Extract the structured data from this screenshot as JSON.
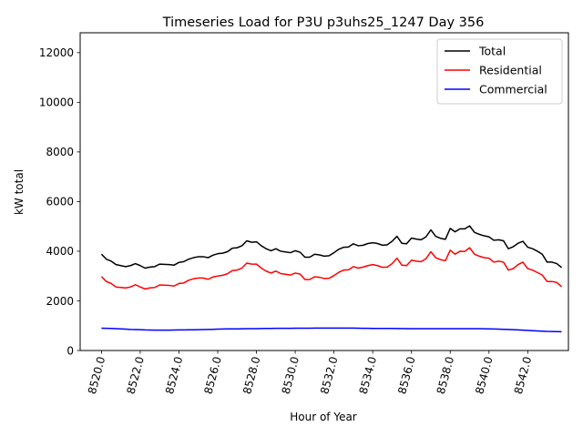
{
  "chart_data": {
    "type": "line",
    "title": "Timeseries Load for P3U p3uhs25_1247  Day 356",
    "xlabel": "Hour of Year",
    "ylabel": "kW total",
    "xlim": [
      8518.9,
      8544.1
    ],
    "ylim": [
      0,
      12800
    ],
    "xticks": [
      8520,
      8522,
      8524,
      8526,
      8528,
      8530,
      8532,
      8534,
      8536,
      8538,
      8540,
      8542
    ],
    "xtick_labels": [
      "8520.0",
      "8522.0",
      "8524.0",
      "8526.0",
      "8528.0",
      "8530.0",
      "8532.0",
      "8534.0",
      "8536.0",
      "8538.0",
      "8540.0",
      "8542.0"
    ],
    "yticks": [
      0,
      2000,
      4000,
      6000,
      8000,
      10000,
      12000
    ],
    "ytick_labels": [
      "0",
      "2000",
      "4000",
      "6000",
      "8000",
      "10000",
      "12000"
    ],
    "grid": false,
    "legend_position": "top-right",
    "x": [
      8520,
      8520.25,
      8520.5,
      8520.75,
      8521,
      8521.25,
      8521.5,
      8521.75,
      8522,
      8522.25,
      8522.5,
      8522.75,
      8523,
      8523.25,
      8523.5,
      8523.75,
      8524,
      8524.25,
      8524.5,
      8524.75,
      8525,
      8525.25,
      8525.5,
      8525.75,
      8526,
      8526.25,
      8526.5,
      8526.75,
      8527,
      8527.25,
      8527.5,
      8527.75,
      8528,
      8528.25,
      8528.5,
      8528.75,
      8529,
      8529.25,
      8529.5,
      8529.75,
      8530,
      8530.25,
      8530.5,
      8530.75,
      8531,
      8531.25,
      8531.5,
      8531.75,
      8532,
      8532.25,
      8532.5,
      8532.75,
      8533,
      8533.25,
      8533.5,
      8533.75,
      8534,
      8534.25,
      8534.5,
      8534.75,
      8535,
      8535.25,
      8535.5,
      8535.75,
      8536,
      8536.25,
      8536.5,
      8536.75,
      8537,
      8537.25,
      8537.5,
      8537.75,
      8538,
      8538.25,
      8538.5,
      8538.75,
      8539,
      8539.25,
      8539.5,
      8539.75,
      8540,
      8540.25,
      8540.5,
      8540.75,
      8541,
      8541.25,
      8541.5,
      8541.75,
      8542,
      8542.25,
      8542.5,
      8542.75,
      8543,
      8543.25,
      8543.5,
      8543.75
    ],
    "series": [
      {
        "name": "Total",
        "color": "#000000",
        "values": [
          3880,
          3680,
          3600,
          3460,
          3420,
          3380,
          3420,
          3500,
          3420,
          3320,
          3360,
          3380,
          3480,
          3470,
          3460,
          3440,
          3550,
          3580,
          3680,
          3740,
          3780,
          3780,
          3740,
          3840,
          3900,
          3920,
          3980,
          4120,
          4140,
          4220,
          4420,
          4360,
          4380,
          4220,
          4100,
          4020,
          4100,
          4000,
          3970,
          3940,
          4020,
          3960,
          3760,
          3760,
          3880,
          3850,
          3800,
          3820,
          3940,
          4080,
          4160,
          4170,
          4300,
          4220,
          4240,
          4310,
          4340,
          4310,
          4240,
          4260,
          4400,
          4600,
          4320,
          4300,
          4530,
          4490,
          4460,
          4580,
          4860,
          4600,
          4520,
          4480,
          4920,
          4780,
          4900,
          4900,
          5020,
          4760,
          4680,
          4620,
          4580,
          4440,
          4460,
          4420,
          4100,
          4180,
          4320,
          4400,
          4160,
          4100,
          4000,
          3880,
          3560,
          3560,
          3500,
          3340
        ]
      },
      {
        "name": "Residential",
        "color": "#ff0000",
        "values": [
          2980,
          2780,
          2700,
          2560,
          2540,
          2520,
          2560,
          2650,
          2560,
          2480,
          2520,
          2540,
          2640,
          2630,
          2620,
          2600,
          2700,
          2720,
          2830,
          2890,
          2920,
          2920,
          2870,
          2960,
          3000,
          3030,
          3090,
          3220,
          3240,
          3320,
          3520,
          3480,
          3480,
          3320,
          3200,
          3120,
          3200,
          3100,
          3070,
          3040,
          3120,
          3080,
          2860,
          2860,
          2970,
          2950,
          2900,
          2910,
          3020,
          3150,
          3240,
          3250,
          3380,
          3320,
          3360,
          3420,
          3460,
          3420,
          3350,
          3360,
          3500,
          3720,
          3440,
          3420,
          3640,
          3600,
          3580,
          3700,
          3980,
          3740,
          3660,
          3620,
          4040,
          3880,
          4000,
          3990,
          4140,
          3880,
          3800,
          3740,
          3720,
          3560,
          3600,
          3560,
          3240,
          3300,
          3460,
          3560,
          3300,
          3240,
          3140,
          3040,
          2780,
          2780,
          2740,
          2570
        ]
      },
      {
        "name": "Commercial",
        "color": "#0000ff",
        "values": [
          900,
          895,
          890,
          880,
          870,
          860,
          850,
          845,
          840,
          830,
          825,
          820,
          820,
          820,
          822,
          824,
          828,
          830,
          832,
          836,
          840,
          845,
          850,
          855,
          860,
          865,
          870,
          870,
          872,
          875,
          878,
          880,
          882,
          885,
          888,
          890,
          892,
          893,
          895,
          896,
          898,
          899,
          900,
          900,
          901,
          902,
          903,
          903,
          904,
          905,
          905,
          904,
          902,
          898,
          895,
          892,
          890,
          890,
          890,
          890,
          888,
          886,
          884,
          882,
          880,
          878,
          878,
          878,
          880,
          880,
          880,
          880,
          882,
          880,
          880,
          880,
          882,
          880,
          878,
          875,
          870,
          866,
          860,
          855,
          850,
          840,
          830,
          820,
          810,
          800,
          790,
          780,
          770,
          765,
          760,
          755
        ]
      }
    ]
  }
}
